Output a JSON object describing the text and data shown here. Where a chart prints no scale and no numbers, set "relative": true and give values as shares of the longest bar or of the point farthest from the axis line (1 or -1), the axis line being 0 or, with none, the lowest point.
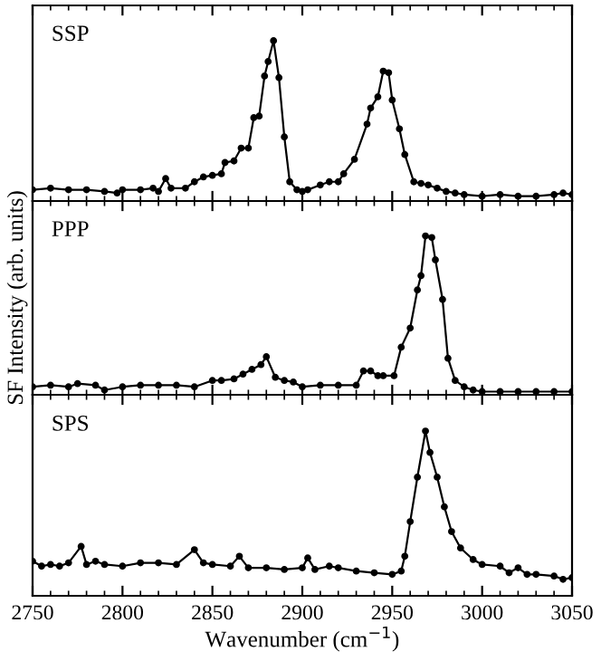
{
  "chart_data": [
    {
      "type": "line",
      "title": "SSP",
      "relative": true,
      "xlim": [
        2750,
        3050
      ],
      "xticks": [
        2750,
        2800,
        2850,
        2900,
        2950,
        3000,
        3050
      ],
      "tick_labels": false,
      "marker": "circle",
      "line_style": "solid",
      "grid": false,
      "legend": false,
      "series": [
        {
          "color": "#000000",
          "x": [
            2750,
            2760,
            2770,
            2780,
            2790,
            2797,
            2800,
            2810,
            2817,
            2820,
            2824,
            2827,
            2835,
            2840,
            2845,
            2850,
            2855,
            2857,
            2862,
            2866,
            2870,
            2873,
            2876,
            2879,
            2881,
            2884,
            2887,
            2890,
            2893,
            2897,
            2900,
            2903,
            2910,
            2915,
            2920,
            2923,
            2929,
            2936,
            2938,
            2942,
            2945,
            2948,
            2950,
            2954,
            2957,
            2962,
            2966,
            2970,
            2975,
            2980,
            2985,
            2990,
            3000,
            3010,
            3020,
            3030,
            3040,
            3045,
            3050
          ],
          "values": [
            0.07,
            0.08,
            0.07,
            0.07,
            0.06,
            0.05,
            0.07,
            0.07,
            0.08,
            0.06,
            0.14,
            0.08,
            0.08,
            0.12,
            0.15,
            0.16,
            0.17,
            0.24,
            0.25,
            0.33,
            0.33,
            0.52,
            0.53,
            0.78,
            0.87,
            1.0,
            0.77,
            0.4,
            0.12,
            0.07,
            0.06,
            0.07,
            0.1,
            0.12,
            0.12,
            0.17,
            0.26,
            0.48,
            0.58,
            0.65,
            0.81,
            0.8,
            0.63,
            0.45,
            0.29,
            0.12,
            0.11,
            0.1,
            0.08,
            0.06,
            0.05,
            0.04,
            0.03,
            0.04,
            0.03,
            0.03,
            0.04,
            0.05,
            0.04
          ]
        }
      ]
    },
    {
      "type": "line",
      "title": "PPP",
      "ylabel": "SF Intensity (arb. units)",
      "relative": true,
      "xlim": [
        2750,
        3050
      ],
      "xticks": [
        2750,
        2800,
        2850,
        2900,
        2950,
        3000,
        3050
      ],
      "tick_labels": false,
      "marker": "circle",
      "line_style": "solid",
      "grid": false,
      "legend": false,
      "series": [
        {
          "color": "#000000",
          "x": [
            2750,
            2760,
            2770,
            2775,
            2785,
            2790,
            2800,
            2810,
            2820,
            2830,
            2840,
            2850,
            2855,
            2862,
            2867,
            2872,
            2877,
            2880,
            2885,
            2890,
            2895,
            2900,
            2910,
            2920,
            2930,
            2934,
            2938,
            2942,
            2945,
            2951,
            2955,
            2960,
            2964,
            2966,
            2968.5,
            2972,
            2974,
            2978,
            2981,
            2985,
            2990,
            2995,
            3000,
            3010,
            3020,
            3030,
            3040,
            3050
          ],
          "values": [
            0.05,
            0.06,
            0.05,
            0.07,
            0.06,
            0.03,
            0.05,
            0.06,
            0.06,
            0.06,
            0.05,
            0.09,
            0.09,
            0.1,
            0.13,
            0.16,
            0.19,
            0.24,
            0.11,
            0.09,
            0.08,
            0.05,
            0.06,
            0.06,
            0.06,
            0.15,
            0.15,
            0.12,
            0.12,
            0.12,
            0.3,
            0.42,
            0.66,
            0.75,
            1.0,
            0.99,
            0.85,
            0.6,
            0.23,
            0.09,
            0.05,
            0.03,
            0.02,
            0.02,
            0.02,
            0.02,
            0.02,
            0.02
          ]
        }
      ]
    },
    {
      "type": "line",
      "title": "SPS",
      "xlabel": "Wavenumber (cm$^{−1}$)",
      "relative": true,
      "xlim": [
        2750,
        3050
      ],
      "xticks": [
        2750,
        2800,
        2850,
        2900,
        2950,
        3000,
        3050
      ],
      "tick_labels": "x",
      "marker": "circle",
      "line_style": "solid",
      "grid": false,
      "legend": false,
      "series": [
        {
          "color": "#000000",
          "x": [
            2750,
            2755,
            2760,
            2765,
            2770,
            2777,
            2780,
            2785,
            2790,
            2800,
            2810,
            2820,
            2830,
            2840,
            2845,
            2850,
            2860,
            2865,
            2870,
            2880,
            2890,
            2900,
            2903,
            2907,
            2915,
            2920,
            2930,
            2940,
            2950,
            2955,
            2957,
            2960,
            2964,
            2968.5,
            2971,
            2975,
            2979,
            2983,
            2988,
            2995,
            3000,
            3010,
            3015,
            3020,
            3025,
            3030,
            3040,
            3045,
            3050
          ],
          "values": [
            0.21,
            0.18,
            0.19,
            0.18,
            0.2,
            0.3,
            0.19,
            0.21,
            0.19,
            0.18,
            0.2,
            0.2,
            0.19,
            0.28,
            0.2,
            0.19,
            0.18,
            0.24,
            0.17,
            0.17,
            0.16,
            0.17,
            0.23,
            0.16,
            0.18,
            0.17,
            0.15,
            0.14,
            0.13,
            0.15,
            0.24,
            0.45,
            0.72,
            1.0,
            0.87,
            0.72,
            0.54,
            0.39,
            0.29,
            0.22,
            0.19,
            0.18,
            0.14,
            0.17,
            0.13,
            0.13,
            0.12,
            0.1,
            0.11
          ]
        }
      ]
    }
  ]
}
